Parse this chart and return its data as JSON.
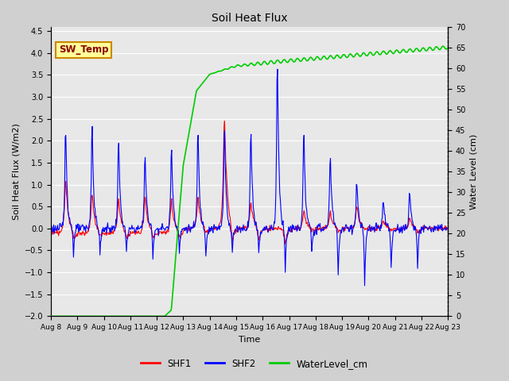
{
  "title": "Soil Heat Flux",
  "ylabel_left": "Soil Heat Flux (W/m2)",
  "ylabel_right": "Water Level (cm)",
  "xlabel": "Time",
  "ylim_left": [
    -2.0,
    4.6
  ],
  "ylim_right": [
    0,
    70
  ],
  "yticks_left": [
    -2.0,
    -1.5,
    -1.0,
    -0.5,
    0.0,
    0.5,
    1.0,
    1.5,
    2.0,
    2.5,
    3.0,
    3.5,
    4.0,
    4.5
  ],
  "yticks_right": [
    0,
    5,
    10,
    15,
    20,
    25,
    30,
    35,
    40,
    45,
    50,
    55,
    60,
    65,
    70
  ],
  "xtick_labels": [
    "Aug 8",
    "Aug 9",
    "Aug 10",
    "Aug 11",
    "Aug 12",
    "Aug 13",
    "Aug 14",
    "Aug 15",
    "Aug 16",
    "Aug 17",
    "Aug 18",
    "Aug 19",
    "Aug 20",
    "Aug 21",
    "Aug 22",
    "Aug 23"
  ],
  "shf1_color": "#ff0000",
  "shf2_color": "#0000ff",
  "water_color": "#00cc00",
  "fig_facecolor": "#d0d0d0",
  "plot_facecolor": "#e8e8e8",
  "annotation_text": "SW_Temp",
  "annotation_fg": "#8b0000",
  "annotation_bg": "#ffff99",
  "annotation_border": "#cc8800"
}
